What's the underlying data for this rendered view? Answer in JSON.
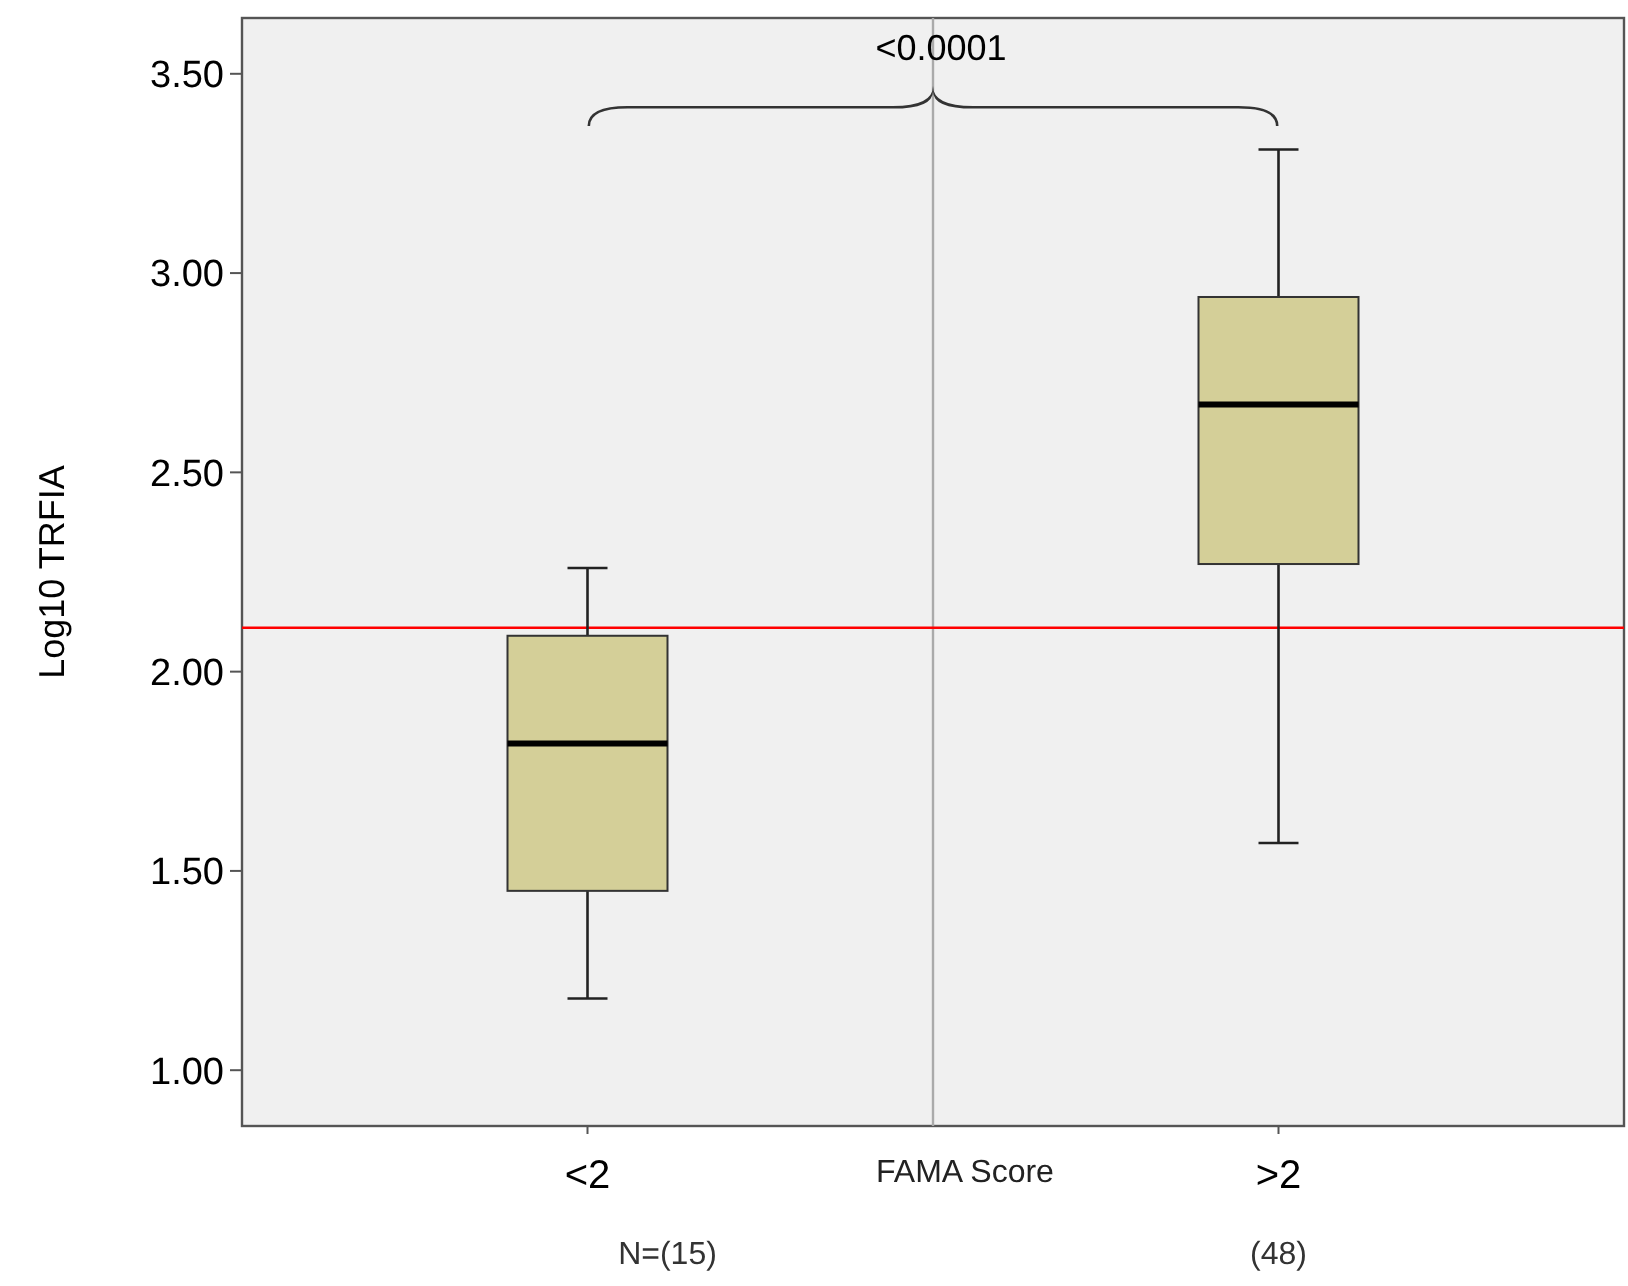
{
  "chart_data": {
    "type": "box",
    "ylabel": "Log10 TRFIA",
    "xlabel": "FAMA Score",
    "categories": [
      "<2",
      ">2"
    ],
    "series": [
      {
        "color": "#d4cf98",
        "boxes": [
          {
            "low": 1.18,
            "q1": 1.45,
            "median": 1.82,
            "q3": 2.09,
            "high": 2.26
          },
          {
            "low": 1.57,
            "q1": 2.27,
            "median": 2.67,
            "q3": 2.94,
            "high": 3.31
          }
        ]
      }
    ],
    "ylim": [
      0.86,
      3.64
    ],
    "yticks": [
      {
        "value": 1,
        "label": "1.00"
      },
      {
        "value": 1.5,
        "label": "1.50"
      },
      {
        "value": 2,
        "label": "2.00"
      },
      {
        "value": 2.5,
        "label": "2.50"
      },
      {
        "value": 3,
        "label": "3.00"
      },
      {
        "value": 3.5,
        "label": "3.50"
      }
    ],
    "ref_lines": [
      {
        "axis": "y",
        "value": 2.11,
        "color": "#ff0000"
      }
    ],
    "annotations": [
      "<0.0001",
      "N=(15)",
      "(48)"
    ],
    "grid": false
  }
}
